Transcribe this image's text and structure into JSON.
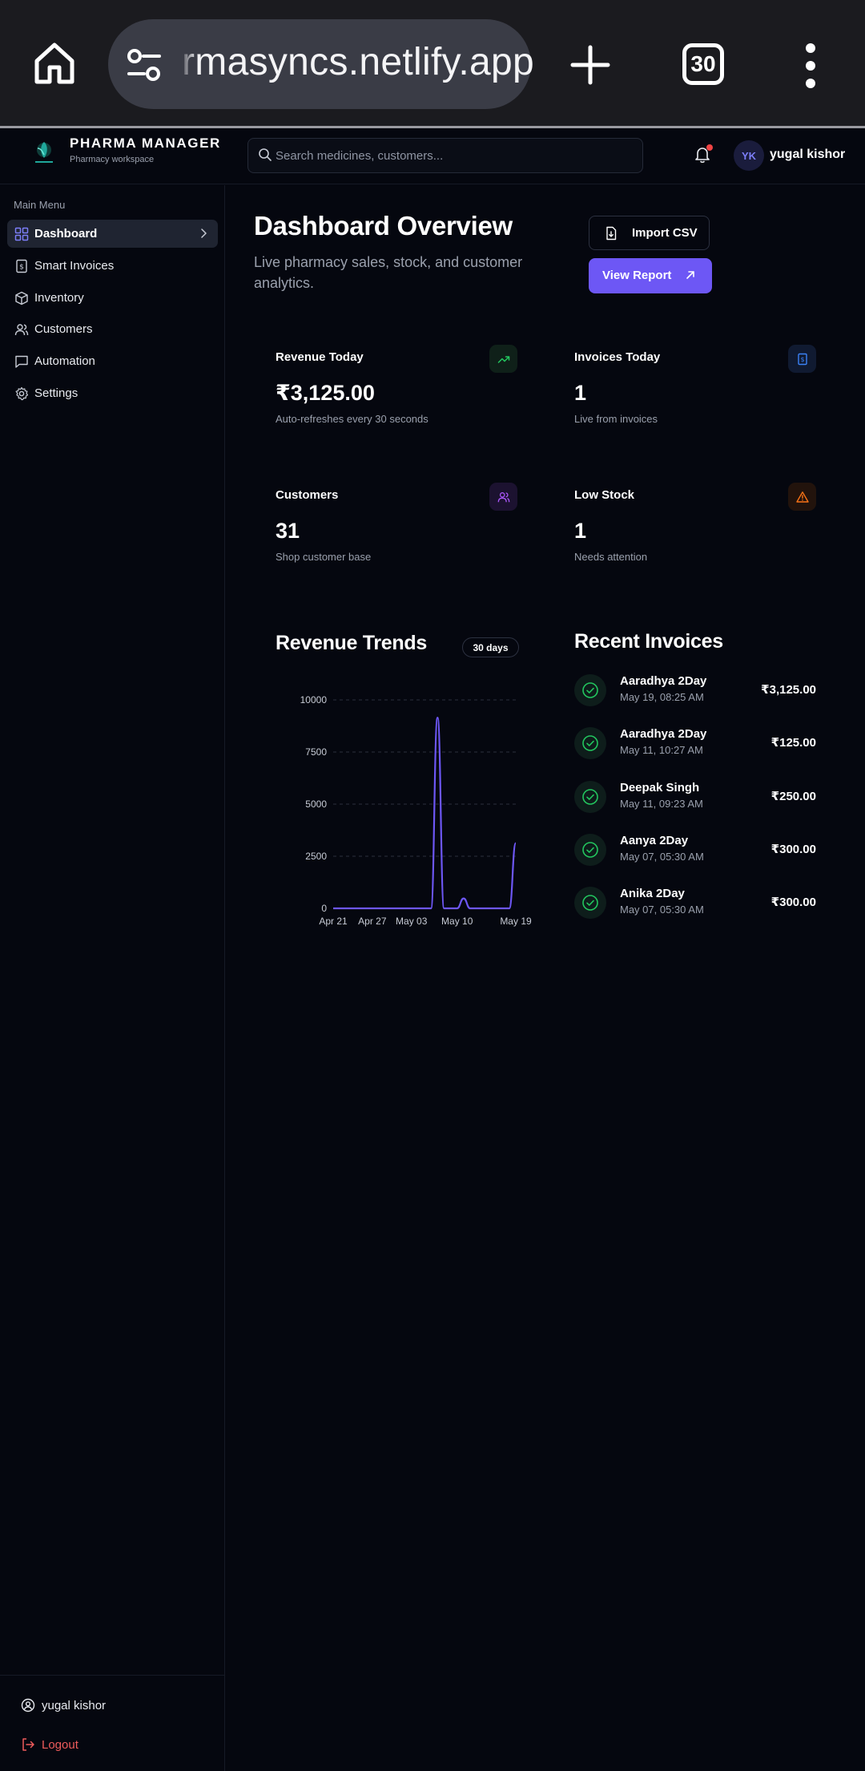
{
  "browser": {
    "url": "rmasyncs.netlify.app",
    "tab_count": "30"
  },
  "header": {
    "brand_name": "PHARMA MANAGER",
    "brand_sub": "Pharmacy workspace",
    "search_placeholder": "Search medicines, customers...",
    "avatar_initials": "YK",
    "user_name": "yugal kishor"
  },
  "sidebar": {
    "heading": "Main Menu",
    "items": [
      {
        "label": "Dashboard",
        "active": true
      },
      {
        "label": "Smart Invoices"
      },
      {
        "label": "Inventory"
      },
      {
        "label": "Customers"
      },
      {
        "label": "Automation"
      },
      {
        "label": "Settings"
      }
    ],
    "footer_user": "yugal kishor",
    "logout_label": "Logout"
  },
  "main": {
    "title": "Dashboard Overview",
    "subtitle": "Live pharmacy sales, stock, and customer analytics.",
    "import_label": "Import CSV",
    "report_label": "View Report",
    "stats": [
      {
        "label": "Revenue Today",
        "value": "₹3,125.00",
        "note": "Auto-refreshes every 30 seconds",
        "icon": "trending-up-icon",
        "color": "#22c55e"
      },
      {
        "label": "Invoices Today",
        "value": "1",
        "note": "Live from invoices",
        "icon": "invoice-icon",
        "color": "#3b82f6"
      },
      {
        "label": "Customers",
        "value": "31",
        "note": "Shop customer base",
        "icon": "users-icon",
        "color": "#a855f7"
      },
      {
        "label": "Low Stock",
        "value": "1",
        "note": "Needs attention",
        "icon": "warning-icon",
        "color": "#f97316"
      }
    ],
    "trends_title": "Revenue Trends",
    "trends_range": "30 days",
    "recent_title": "Recent Invoices",
    "invoices": [
      {
        "name": "Aaradhya 2Day",
        "date": "May 19, 08:25 AM",
        "amount": "₹3,125.00"
      },
      {
        "name": "Aaradhya 2Day",
        "date": "May 11, 10:27 AM",
        "amount": "₹125.00"
      },
      {
        "name": "Deepak Singh",
        "date": "May 11, 09:23 AM",
        "amount": "₹250.00"
      },
      {
        "name": "Aanya 2Day",
        "date": "May 07, 05:30 AM",
        "amount": "₹300.00"
      },
      {
        "name": "Anika 2Day",
        "date": "May 07, 05:30 AM",
        "amount": "₹300.00"
      }
    ]
  },
  "chart_data": {
    "type": "line",
    "title": "Revenue Trends",
    "x": [
      "Apr 21",
      "Apr 22",
      "Apr 23",
      "Apr 24",
      "Apr 25",
      "Apr 26",
      "Apr 27",
      "Apr 28",
      "Apr 29",
      "Apr 30",
      "May 01",
      "May 02",
      "May 03",
      "May 04",
      "May 05",
      "May 06",
      "May 07",
      "May 08",
      "May 09",
      "May 10",
      "May 11",
      "May 12",
      "May 13",
      "May 14",
      "May 15",
      "May 16",
      "May 17",
      "May 18",
      "May 19"
    ],
    "values": [
      0,
      0,
      0,
      0,
      0,
      0,
      0,
      0,
      0,
      0,
      0,
      0,
      0,
      0,
      0,
      0,
      9150,
      0,
      0,
      0,
      475,
      0,
      0,
      0,
      0,
      0,
      0,
      0,
      3125
    ],
    "x_tick_labels": [
      "Apr 21",
      "Apr 27",
      "May 03",
      "May 10",
      "May 19"
    ],
    "y_ticks": [
      0,
      2500,
      5000,
      7500,
      10000
    ],
    "ylim": [
      0,
      10000
    ],
    "grid": true,
    "series_color": "#6d57f5"
  }
}
